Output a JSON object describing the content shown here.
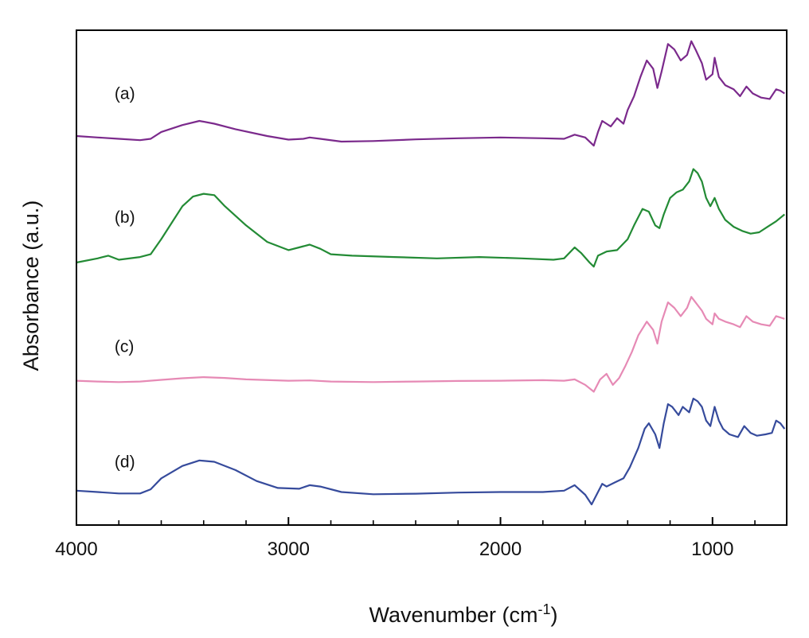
{
  "chart_data": {
    "type": "line",
    "title": "",
    "xlabel": "Wavenumber (cm",
    "xlabel_sup": "-1",
    "xlabel_close": ")",
    "ylabel": "Absorbance (a.u.)",
    "xlim": [
      4000,
      650
    ],
    "ylim": [
      0,
      18
    ],
    "x_reversed": true,
    "x_ticks": [
      4000,
      3000,
      2000,
      1000
    ],
    "x_tick_labels": [
      "4000",
      "3000",
      "2000",
      "1000"
    ],
    "y_tick_labels_shown": false,
    "grid": false,
    "legend": "none",
    "series": [
      {
        "name": "(a)",
        "color": "#7b2a8c",
        "points": [
          [
            4000,
            14.15
          ],
          [
            3900,
            14.1
          ],
          [
            3800,
            14.05
          ],
          [
            3700,
            14.0
          ],
          [
            3650,
            14.05
          ],
          [
            3600,
            14.3
          ],
          [
            3500,
            14.55
          ],
          [
            3420,
            14.7
          ],
          [
            3350,
            14.6
          ],
          [
            3250,
            14.4
          ],
          [
            3100,
            14.15
          ],
          [
            3000,
            14.02
          ],
          [
            2930,
            14.05
          ],
          [
            2900,
            14.1
          ],
          [
            2850,
            14.05
          ],
          [
            2750,
            13.95
          ],
          [
            2600,
            13.97
          ],
          [
            2400,
            14.03
          ],
          [
            2200,
            14.07
          ],
          [
            2000,
            14.1
          ],
          [
            1800,
            14.07
          ],
          [
            1700,
            14.05
          ],
          [
            1650,
            14.2
          ],
          [
            1600,
            14.1
          ],
          [
            1560,
            13.8
          ],
          [
            1540,
            14.3
          ],
          [
            1520,
            14.7
          ],
          [
            1500,
            14.6
          ],
          [
            1480,
            14.5
          ],
          [
            1450,
            14.8
          ],
          [
            1420,
            14.6
          ],
          [
            1400,
            15.1
          ],
          [
            1370,
            15.6
          ],
          [
            1340,
            16.3
          ],
          [
            1310,
            16.9
          ],
          [
            1280,
            16.6
          ],
          [
            1260,
            15.9
          ],
          [
            1240,
            16.5
          ],
          [
            1210,
            17.5
          ],
          [
            1180,
            17.3
          ],
          [
            1150,
            16.9
          ],
          [
            1120,
            17.1
          ],
          [
            1100,
            17.6
          ],
          [
            1080,
            17.3
          ],
          [
            1050,
            16.8
          ],
          [
            1030,
            16.2
          ],
          [
            1000,
            16.4
          ],
          [
            990,
            17.0
          ],
          [
            970,
            16.3
          ],
          [
            940,
            16.0
          ],
          [
            900,
            15.85
          ],
          [
            870,
            15.6
          ],
          [
            840,
            15.95
          ],
          [
            810,
            15.7
          ],
          [
            770,
            15.55
          ],
          [
            730,
            15.5
          ],
          [
            700,
            15.85
          ],
          [
            680,
            15.8
          ],
          [
            660,
            15.7
          ]
        ]
      },
      {
        "name": "(b)",
        "color": "#238b35",
        "points": [
          [
            4000,
            9.55
          ],
          [
            3900,
            9.7
          ],
          [
            3850,
            9.8
          ],
          [
            3800,
            9.65
          ],
          [
            3700,
            9.75
          ],
          [
            3650,
            9.85
          ],
          [
            3600,
            10.4
          ],
          [
            3550,
            11.0
          ],
          [
            3500,
            11.6
          ],
          [
            3450,
            11.95
          ],
          [
            3400,
            12.05
          ],
          [
            3350,
            12.0
          ],
          [
            3300,
            11.6
          ],
          [
            3200,
            10.9
          ],
          [
            3100,
            10.3
          ],
          [
            3000,
            10.0
          ],
          [
            2950,
            10.1
          ],
          [
            2900,
            10.2
          ],
          [
            2850,
            10.05
          ],
          [
            2800,
            9.85
          ],
          [
            2700,
            9.8
          ],
          [
            2500,
            9.75
          ],
          [
            2300,
            9.7
          ],
          [
            2100,
            9.75
          ],
          [
            1900,
            9.7
          ],
          [
            1750,
            9.65
          ],
          [
            1700,
            9.7
          ],
          [
            1650,
            10.1
          ],
          [
            1620,
            9.9
          ],
          [
            1580,
            9.55
          ],
          [
            1560,
            9.4
          ],
          [
            1540,
            9.8
          ],
          [
            1500,
            9.95
          ],
          [
            1450,
            10.0
          ],
          [
            1400,
            10.4
          ],
          [
            1370,
            10.9
          ],
          [
            1330,
            11.5
          ],
          [
            1300,
            11.4
          ],
          [
            1270,
            10.9
          ],
          [
            1250,
            10.8
          ],
          [
            1230,
            11.3
          ],
          [
            1200,
            11.9
          ],
          [
            1170,
            12.1
          ],
          [
            1140,
            12.2
          ],
          [
            1110,
            12.5
          ],
          [
            1090,
            12.95
          ],
          [
            1070,
            12.8
          ],
          [
            1050,
            12.5
          ],
          [
            1030,
            11.9
          ],
          [
            1010,
            11.6
          ],
          [
            990,
            11.9
          ],
          [
            970,
            11.5
          ],
          [
            940,
            11.1
          ],
          [
            900,
            10.85
          ],
          [
            860,
            10.7
          ],
          [
            820,
            10.6
          ],
          [
            780,
            10.65
          ],
          [
            740,
            10.85
          ],
          [
            700,
            11.05
          ],
          [
            660,
            11.3
          ]
        ]
      },
      {
        "name": "(c)",
        "color": "#e68ab5",
        "points": [
          [
            4000,
            5.25
          ],
          [
            3900,
            5.22
          ],
          [
            3800,
            5.2
          ],
          [
            3700,
            5.22
          ],
          [
            3600,
            5.28
          ],
          [
            3500,
            5.34
          ],
          [
            3400,
            5.38
          ],
          [
            3300,
            5.35
          ],
          [
            3200,
            5.3
          ],
          [
            3000,
            5.25
          ],
          [
            2900,
            5.26
          ],
          [
            2800,
            5.22
          ],
          [
            2600,
            5.2
          ],
          [
            2400,
            5.22
          ],
          [
            2200,
            5.24
          ],
          [
            2000,
            5.25
          ],
          [
            1800,
            5.27
          ],
          [
            1700,
            5.25
          ],
          [
            1650,
            5.3
          ],
          [
            1600,
            5.1
          ],
          [
            1560,
            4.85
          ],
          [
            1530,
            5.3
          ],
          [
            1500,
            5.5
          ],
          [
            1470,
            5.1
          ],
          [
            1440,
            5.35
          ],
          [
            1410,
            5.8
          ],
          [
            1380,
            6.3
          ],
          [
            1350,
            6.9
          ],
          [
            1310,
            7.4
          ],
          [
            1280,
            7.1
          ],
          [
            1260,
            6.6
          ],
          [
            1240,
            7.4
          ],
          [
            1210,
            8.1
          ],
          [
            1180,
            7.9
          ],
          [
            1150,
            7.6
          ],
          [
            1120,
            7.9
          ],
          [
            1100,
            8.3
          ],
          [
            1080,
            8.1
          ],
          [
            1050,
            7.8
          ],
          [
            1030,
            7.5
          ],
          [
            1000,
            7.3
          ],
          [
            990,
            7.7
          ],
          [
            970,
            7.5
          ],
          [
            940,
            7.4
          ],
          [
            900,
            7.3
          ],
          [
            870,
            7.2
          ],
          [
            840,
            7.6
          ],
          [
            810,
            7.4
          ],
          [
            770,
            7.3
          ],
          [
            730,
            7.25
          ],
          [
            700,
            7.6
          ],
          [
            680,
            7.55
          ],
          [
            660,
            7.5
          ]
        ]
      },
      {
        "name": "(d)",
        "color": "#364b9c",
        "points": [
          [
            4000,
            1.25
          ],
          [
            3900,
            1.2
          ],
          [
            3800,
            1.15
          ],
          [
            3700,
            1.15
          ],
          [
            3650,
            1.3
          ],
          [
            3600,
            1.7
          ],
          [
            3500,
            2.15
          ],
          [
            3420,
            2.35
          ],
          [
            3350,
            2.3
          ],
          [
            3250,
            2.0
          ],
          [
            3150,
            1.6
          ],
          [
            3050,
            1.35
          ],
          [
            2950,
            1.32
          ],
          [
            2900,
            1.45
          ],
          [
            2850,
            1.4
          ],
          [
            2750,
            1.2
          ],
          [
            2600,
            1.12
          ],
          [
            2400,
            1.14
          ],
          [
            2200,
            1.18
          ],
          [
            2000,
            1.2
          ],
          [
            1800,
            1.2
          ],
          [
            1700,
            1.25
          ],
          [
            1650,
            1.45
          ],
          [
            1600,
            1.1
          ],
          [
            1570,
            0.75
          ],
          [
            1540,
            1.2
          ],
          [
            1520,
            1.5
          ],
          [
            1500,
            1.4
          ],
          [
            1460,
            1.55
          ],
          [
            1420,
            1.7
          ],
          [
            1390,
            2.1
          ],
          [
            1350,
            2.8
          ],
          [
            1320,
            3.5
          ],
          [
            1300,
            3.7
          ],
          [
            1270,
            3.3
          ],
          [
            1250,
            2.8
          ],
          [
            1230,
            3.7
          ],
          [
            1210,
            4.4
          ],
          [
            1190,
            4.3
          ],
          [
            1160,
            4.0
          ],
          [
            1140,
            4.3
          ],
          [
            1110,
            4.1
          ],
          [
            1090,
            4.6
          ],
          [
            1070,
            4.5
          ],
          [
            1050,
            4.3
          ],
          [
            1030,
            3.8
          ],
          [
            1010,
            3.6
          ],
          [
            990,
            4.3
          ],
          [
            970,
            3.8
          ],
          [
            950,
            3.5
          ],
          [
            920,
            3.3
          ],
          [
            880,
            3.2
          ],
          [
            850,
            3.6
          ],
          [
            820,
            3.35
          ],
          [
            790,
            3.25
          ],
          [
            750,
            3.3
          ],
          [
            720,
            3.35
          ],
          [
            700,
            3.8
          ],
          [
            680,
            3.7
          ],
          [
            660,
            3.5
          ]
        ]
      }
    ],
    "curve_labels": [
      {
        "text": "(a)",
        "x": 3820,
        "y": 15.5
      },
      {
        "text": "(b)",
        "x": 3820,
        "y": 11.0
      },
      {
        "text": "(c)",
        "x": 3820,
        "y": 6.3
      },
      {
        "text": "(d)",
        "x": 3820,
        "y": 2.1
      }
    ]
  }
}
